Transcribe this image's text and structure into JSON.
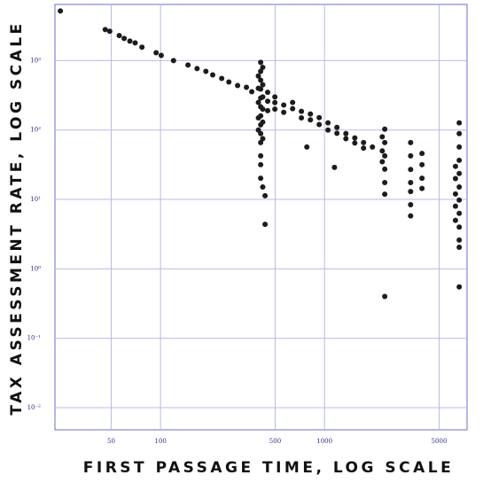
{
  "chart_data": {
    "type": "scatter",
    "x_label": "FIRST PASSAGE TIME, LOG SCALE",
    "y_label": "TAX ASSESSMENT RATE, LOG SCALE",
    "x": [
      24.5,
      46,
      49,
      56,
      60,
      65,
      70,
      77,
      94,
      101,
      120,
      147,
      167,
      189,
      208,
      236,
      261,
      295,
      334,
      360,
      408,
      408,
      408,
      408,
      408,
      408,
      408,
      408,
      408,
      408,
      408,
      408,
      408,
      395,
      395,
      395,
      395,
      395,
      420,
      420,
      420,
      420,
      420,
      420,
      420,
      434,
      434,
      450,
      450,
      450,
      498,
      498,
      498,
      564,
      564,
      639,
      639,
      723,
      723,
      820,
      820,
      928,
      928,
      1050,
      1050,
      1190,
      1190,
      1350,
      1350,
      1530,
      1530,
      1730,
      1730,
      1960,
      780,
      1150,
      2330,
      2330,
      2330,
      2330,
      2330,
      2330,
      2330,
      2250,
      2250,
      2250,
      3350,
      3350,
      3350,
      3350,
      3350,
      3350,
      3350,
      3930,
      3930,
      3930,
      3930,
      6630,
      6630,
      6630,
      6630,
      6630,
      6630,
      6630,
      6630,
      6630,
      6630,
      6630,
      6630,
      6290,
      6290,
      6290,
      6290,
      6290
    ],
    "values": [
      5200,
      2800,
      2650,
      2300,
      2090,
      1910,
      1800,
      1560,
      1300,
      1190,
      1000,
      863,
      767,
      702,
      623,
      554,
      493,
      438,
      413,
      356,
      943,
      702,
      522,
      389,
      289,
      216,
      160,
      119,
      89,
      66,
      42.5,
      31.7,
      20.2,
      600,
      400,
      250,
      150,
      100,
      800,
      450,
      300,
      200,
      130,
      75,
      15.1,
      11.3,
      4.38,
      350,
      260,
      190,
      249,
      200,
      300,
      229,
      180,
      203,
      250,
      186,
      150,
      170,
      140,
      151,
      120,
      127,
      100,
      109,
      90,
      89,
      75,
      77,
      65,
      66,
      55,
      57,
      57,
      29,
      103,
      66,
      42.5,
      27.3,
      17.5,
      11.9,
      0.4,
      80,
      50,
      35,
      66,
      42.5,
      27,
      17.5,
      13,
      8.4,
      5.8,
      46,
      31.7,
      20.2,
      14.4,
      127,
      89,
      57,
      36.7,
      23.7,
      15.1,
      9.8,
      6.3,
      4.0,
      2.6,
      2.05,
      0.55,
      30,
      20,
      12,
      8,
      5
    ],
    "color": "#1c1c1c",
    "x_log": true,
    "y_log": true,
    "xlim": [
      22.7,
      7400
    ],
    "ylim": [
      0.0048,
      6450
    ],
    "xticks": [
      50,
      100,
      500,
      1000,
      5000
    ],
    "yticks": [
      {
        "value": 1000,
        "label": "10³"
      },
      {
        "value": 100,
        "label": "10²"
      },
      {
        "value": 10,
        "label": "10¹"
      },
      {
        "value": 1,
        "label": "10⁰"
      },
      {
        "value": 0.1,
        "label": "10⁻¹"
      },
      {
        "value": 0.01,
        "label": "10⁻²"
      }
    ],
    "grid": true
  }
}
